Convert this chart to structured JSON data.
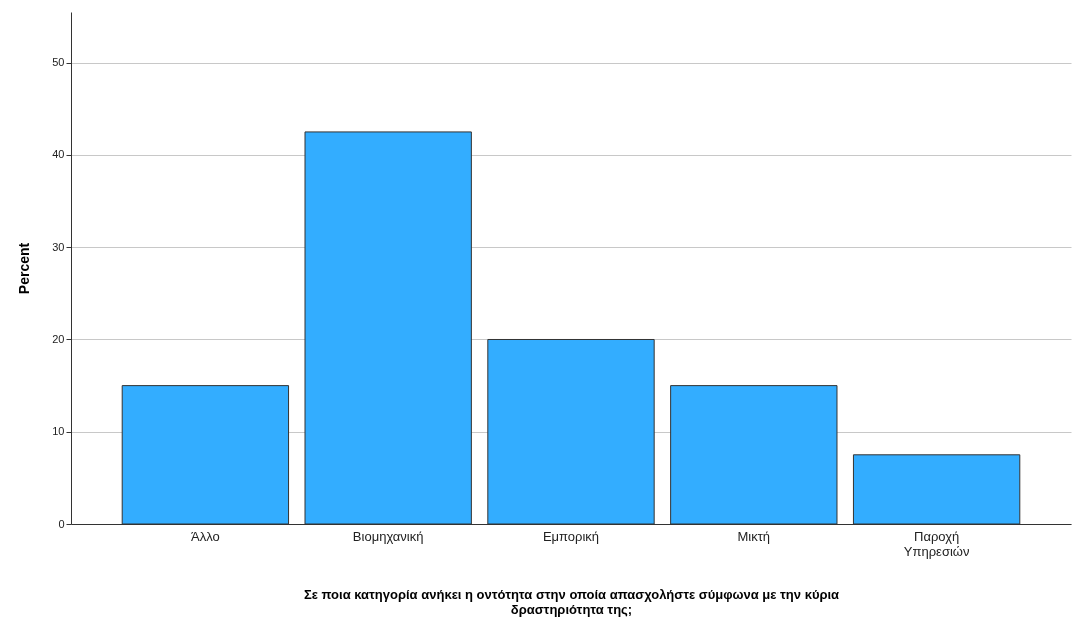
{
  "chart_data": {
    "type": "bar",
    "xlabel": "Σε ποια κατηγορία ανήκει η οντότητα στην οποία απασχολήστε σύμφωνα με την κύρια δραστηριότητα της;",
    "ylabel": "Percent",
    "categories": [
      "Άλλο",
      "Βιομηχανική",
      "Εμπορική",
      "Μικτή",
      "Παροχή Υπηρεσιών"
    ],
    "values": [
      15,
      42.5,
      20,
      15,
      7.5
    ],
    "color": "#33adff",
    "ylim": [
      0,
      55.5
    ],
    "yticks": [
      0,
      10,
      20,
      30,
      40,
      50
    ],
    "grid": "y"
  }
}
